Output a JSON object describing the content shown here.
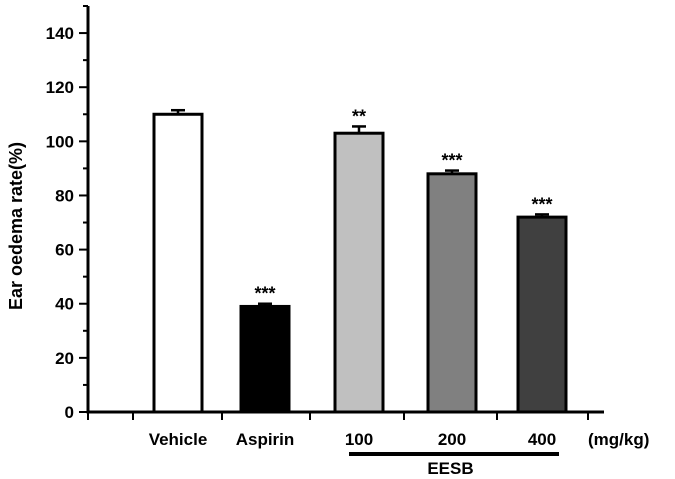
{
  "chart_data": {
    "type": "bar",
    "ylabel": "Ear oedema rate(%)",
    "xlabel": "",
    "ylim": [
      0,
      150
    ],
    "yticks": [
      0,
      20,
      40,
      60,
      80,
      100,
      120,
      140
    ],
    "categories": [
      "Vehicle",
      "Aspirin",
      "100",
      "200",
      "400"
    ],
    "values": [
      110,
      39,
      103,
      88,
      72
    ],
    "errors": [
      1.5,
      1,
      2.5,
      1.2,
      1
    ],
    "significance": [
      "",
      "***",
      "**",
      "***",
      "***"
    ],
    "bar_colors": [
      "#ffffff",
      "#000000",
      "#c0c0c0",
      "#808080",
      "#404040"
    ],
    "unit_label": "(mg/kg)",
    "group": {
      "label": "EESB",
      "from": 2,
      "to": 4
    },
    "grid": false,
    "legend": "none"
  }
}
